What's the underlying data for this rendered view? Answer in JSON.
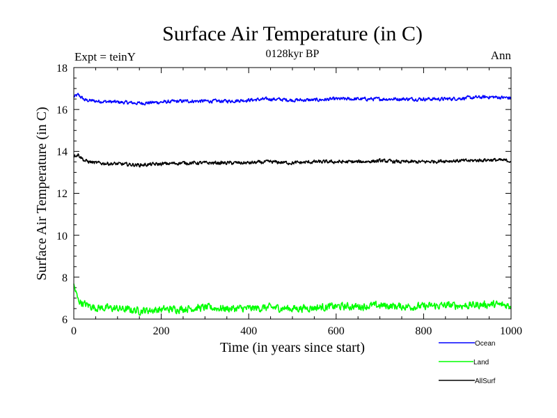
{
  "chart_data": {
    "type": "line",
    "title": "Surface Air Temperature (in C)",
    "subtitle": "0128kyr BP",
    "left_annotation": "Expt = teinY",
    "right_annotation": "Ann",
    "xlabel": "Time (in years since start)",
    "ylabel": "Surface Air Temperature (in C)",
    "xlim": [
      0,
      1000
    ],
    "ylim": [
      6,
      18
    ],
    "x_ticks": [
      "0",
      "200",
      "400",
      "600",
      "800",
      "1000"
    ],
    "y_ticks": [
      "6",
      "8",
      "10",
      "12",
      "14",
      "16",
      "18"
    ],
    "legend_position": "bottom-right, outside plot",
    "series": [
      {
        "name": "Ocean",
        "color": "#0000ff",
        "x": [
          0,
          10,
          25,
          50,
          100,
          150,
          200,
          250,
          300,
          350,
          400,
          450,
          500,
          550,
          600,
          650,
          700,
          750,
          800,
          850,
          900,
          950,
          1000
        ],
        "values": [
          16.6,
          16.7,
          16.45,
          16.4,
          16.35,
          16.3,
          16.35,
          16.4,
          16.4,
          16.4,
          16.45,
          16.5,
          16.45,
          16.45,
          16.5,
          16.5,
          16.5,
          16.5,
          16.5,
          16.5,
          16.55,
          16.6,
          16.55
        ]
      },
      {
        "name": "Land",
        "color": "#00ff00",
        "x": [
          0,
          10,
          25,
          50,
          100,
          150,
          200,
          250,
          300,
          350,
          400,
          450,
          500,
          550,
          600,
          650,
          700,
          750,
          800,
          850,
          900,
          950,
          1000
        ],
        "values": [
          7.6,
          6.9,
          6.7,
          6.55,
          6.5,
          6.4,
          6.45,
          6.5,
          6.55,
          6.5,
          6.5,
          6.55,
          6.5,
          6.55,
          6.6,
          6.6,
          6.65,
          6.6,
          6.6,
          6.65,
          6.65,
          6.7,
          6.65
        ]
      },
      {
        "name": "AllSurf",
        "color": "#000000",
        "x": [
          0,
          10,
          25,
          50,
          100,
          150,
          200,
          250,
          300,
          350,
          400,
          450,
          500,
          550,
          600,
          650,
          700,
          750,
          800,
          850,
          900,
          950,
          1000
        ],
        "values": [
          13.8,
          13.85,
          13.55,
          13.45,
          13.4,
          13.35,
          13.4,
          13.45,
          13.45,
          13.45,
          13.45,
          13.5,
          13.45,
          13.5,
          13.5,
          13.5,
          13.55,
          13.5,
          13.5,
          13.55,
          13.55,
          13.6,
          13.55
        ]
      }
    ]
  }
}
